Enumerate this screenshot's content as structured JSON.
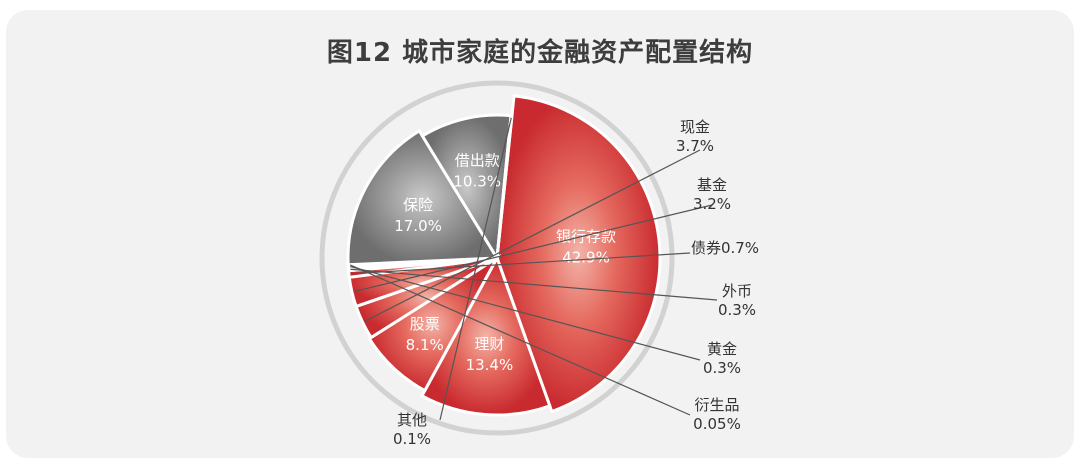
{
  "chart_data": {
    "type": "pie",
    "title": "图12 城市家庭的金融资产配置结构",
    "slices": [
      {
        "label": "银行存款",
        "value": 42.9,
        "display": "42.9%",
        "color": "#d93a3a"
      },
      {
        "label": "理财",
        "value": 13.4,
        "display": "13.4%",
        "color": "#e54c4c"
      },
      {
        "label": "股票",
        "value": 8.1,
        "display": "8.1%",
        "color": "#e25050"
      },
      {
        "label": "现金",
        "value": 3.7,
        "display": "3.7%",
        "color": "#e34848"
      },
      {
        "label": "基金",
        "value": 3.2,
        "display": "3.2%",
        "color": "#e24a4a"
      },
      {
        "label": "债券",
        "value": 0.7,
        "display": "0.7%",
        "color": "#ec8a8a"
      },
      {
        "label": "外币",
        "value": 0.3,
        "display": "0.3%",
        "color": "#efaaaa"
      },
      {
        "label": "黄金",
        "value": 0.3,
        "display": "0.3%",
        "color": "#c9b6b6"
      },
      {
        "label": "衍生品",
        "value": 0.05,
        "display": "0.05%",
        "color": "#bdbdbd"
      },
      {
        "label": "保险",
        "value": 17.0,
        "display": "17.0%",
        "color": "#8a8a8a"
      },
      {
        "label": "借出款",
        "value": 10.3,
        "display": "10.3%",
        "color": "#7d7d7d"
      },
      {
        "label": "其他",
        "value": 0.1,
        "display": "0.1%",
        "color": "#a0a0a0"
      }
    ]
  }
}
